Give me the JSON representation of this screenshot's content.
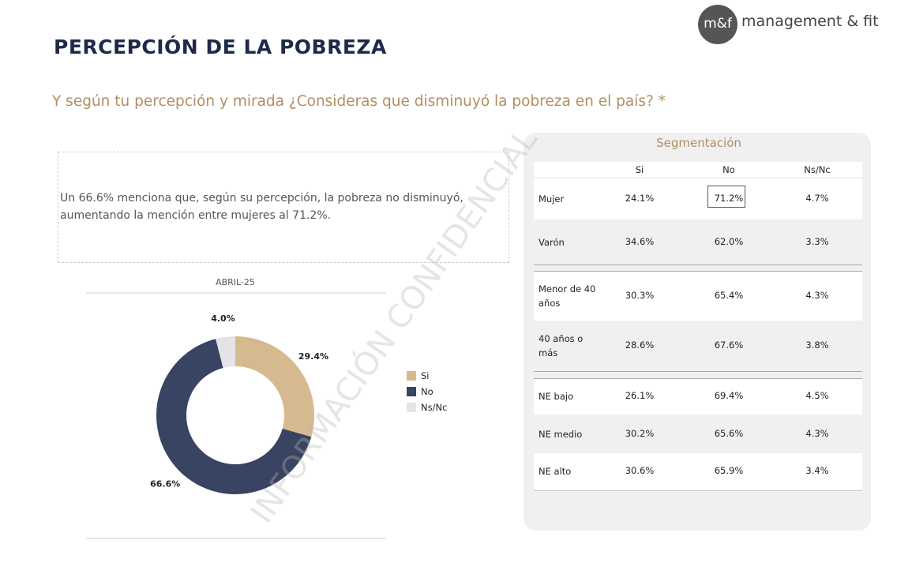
{
  "logo": {
    "mark": "m&f",
    "text": "management & fit"
  },
  "title": "PERCEPCIÓN DE LA POBREZA",
  "question": "Y según tu percepción y mirada ¿Consideras que disminuyó la pobreza en el país? *",
  "summary": "Un 66.6% menciona que, según su percepción, la pobreza no disminuyó, aumentando la mención entre mujeres al 71.2%.",
  "watermark": "INFORMACIÓN CONFIDENCIAL",
  "table": {
    "caption": "Segmentación",
    "header": [
      "Si",
      "No",
      "Ns/Nc"
    ],
    "rows": [
      {
        "label": "Mujer",
        "values": [
          "24.1%",
          "71.2%",
          "4.7%"
        ]
      },
      {
        "label": "Varón",
        "values": [
          "34.6%",
          "62.0%",
          "3.3%"
        ]
      },
      {
        "label": "Menor de 40 años",
        "values": [
          "30.3%",
          "65.4%",
          "4.3%"
        ]
      },
      {
        "label": "40 años o más",
        "values": [
          "28.6%",
          "67.6%",
          "3.8%"
        ]
      },
      {
        "label": "NE bajo",
        "values": [
          "26.1%",
          "69.4%",
          "4.5%"
        ]
      },
      {
        "label": "NE medio",
        "values": [
          "30.2%",
          "65.6%",
          "4.3%"
        ]
      },
      {
        "label": "NE alto",
        "values": [
          "30.6%",
          "65.9%",
          "3.4%"
        ]
      }
    ]
  },
  "chart_data": {
    "type": "pie",
    "subtitle": "ABRIL-25",
    "categories": [
      "Si",
      "No",
      "Ns/Nc"
    ],
    "values": [
      29.4,
      66.6,
      4.0
    ],
    "value_labels": [
      "29.4%",
      "66.6%",
      "4.0%"
    ],
    "colors": [
      "#d6b98f",
      "#384462",
      "#e4e4e6"
    ]
  }
}
